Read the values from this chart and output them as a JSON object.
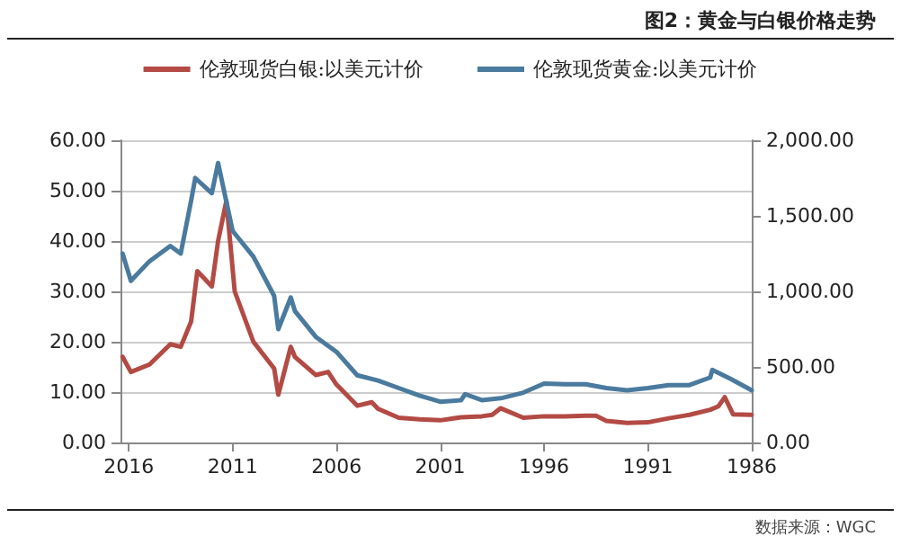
{
  "chart_data": {
    "type": "line",
    "title": "图2：黄金与白银价格走势",
    "annotations": [
      "数据来源：WGC"
    ],
    "xlim": [
      2016.4,
      1986
    ],
    "xticks": [
      2016,
      2011,
      2006,
      2001,
      1996,
      1991,
      1986
    ],
    "ylim": [
      0,
      60
    ],
    "yticks": [
      {
        "value": 0,
        "label": "0.00"
      },
      {
        "value": 10,
        "label": "10.00"
      },
      {
        "value": 20,
        "label": "20.00"
      },
      {
        "value": 30,
        "label": "30.00"
      },
      {
        "value": 40,
        "label": "40.00"
      },
      {
        "value": 50,
        "label": "50.00"
      },
      {
        "value": 60,
        "label": "60.00"
      }
    ],
    "y2lim": [
      0,
      2000
    ],
    "y2ticks": [
      {
        "value": 0,
        "label": "0.00"
      },
      {
        "value": 500,
        "label": "500.00"
      },
      {
        "value": 1000,
        "label": "1,000.00"
      },
      {
        "value": 1500,
        "label": "1,500.00"
      },
      {
        "value": 2000,
        "label": "2,000.00"
      }
    ],
    "grid": "y",
    "legend": "top",
    "marker": "none",
    "line_style": "solid",
    "series": [
      {
        "name": "伦敦现货白银:以美元计价",
        "color": "#b34a44",
        "x": [
          1986,
          1986.9,
          1987.3,
          1987.6,
          1988,
          1989,
          1990,
          1991,
          1992,
          1993,
          1993.5,
          1994,
          1995,
          1996,
          1997,
          1998.1,
          1998.5,
          1999,
          2000,
          2001,
          2002,
          2003,
          2004,
          2004.3,
          2005,
          2006,
          2006.4,
          2007,
          2008,
          2008.2,
          2008.8,
          2009,
          2010,
          2010.9,
          2011.3,
          2011.7,
          2012,
          2012.7,
          2013,
          2013.5,
          2014,
          2015,
          2015.9,
          2016.3
        ],
        "values": [
          5.5,
          5.6,
          9,
          7.2,
          6.5,
          5.5,
          4.8,
          4,
          3.9,
          4.3,
          5.3,
          5.3,
          5.2,
          5.2,
          4.9,
          6.8,
          5.5,
          5.2,
          5,
          4.4,
          4.6,
          4.9,
          6.7,
          8,
          7.3,
          11.5,
          14,
          13.4,
          17,
          19,
          9.5,
          14.7,
          20,
          30,
          48,
          40,
          31,
          34,
          24,
          19,
          19.5,
          15.5,
          14,
          17
        ]
      },
      {
        "name": "伦敦现货黄金:以美元计价",
        "color": "#4a7a9e",
        "axis": "y2",
        "x": [
          1986,
          1987,
          1987.9,
          1988,
          1989,
          1990,
          1991,
          1992,
          1993,
          1994,
          1995,
          1996,
          1997,
          1998,
          1999,
          1999.8,
          2000,
          2001,
          2002,
          2003,
          2004,
          2005,
          2006,
          2007,
          2008,
          2008.2,
          2008.8,
          2009,
          2010,
          2011,
          2011.7,
          2012,
          2012.8,
          2013,
          2013.5,
          2014,
          2015,
          2015.9,
          2016.3
        ],
        "values": [
          345,
          420,
          480,
          430,
          380,
          380,
          360,
          345,
          360,
          385,
          385,
          390,
          330,
          295,
          280,
          320,
          280,
          270,
          310,
          360,
          410,
          445,
          600,
          700,
          870,
          960,
          750,
          970,
          1230,
          1400,
          1850,
          1650,
          1750,
          1600,
          1250,
          1300,
          1200,
          1070,
          1250
        ]
      }
    ]
  }
}
